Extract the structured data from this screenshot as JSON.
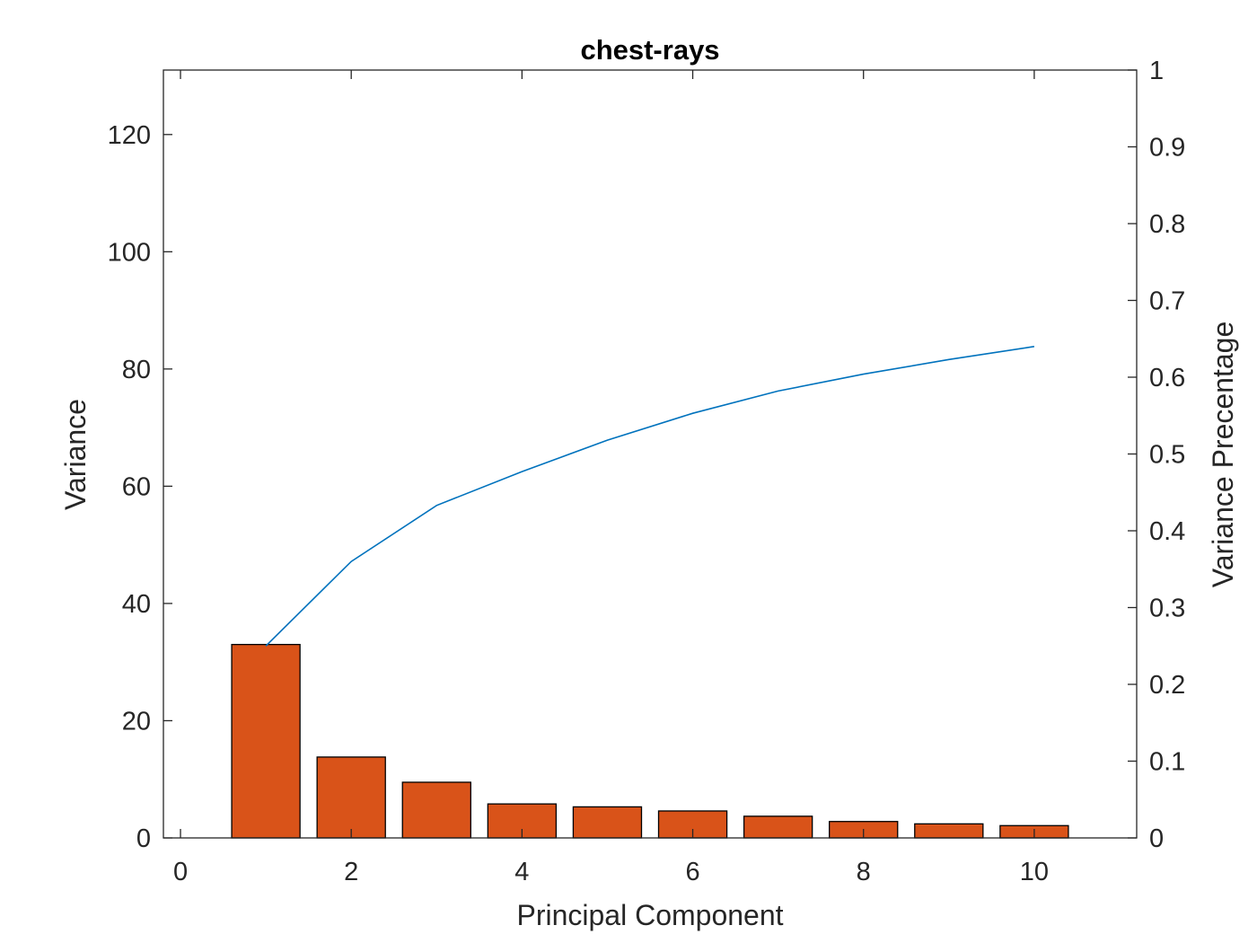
{
  "chart_data": {
    "type": "bar",
    "title": "chest-rays",
    "xlabel": "Principal Component",
    "ylabel": "Variance",
    "ylabel_right": "Variance Precentage",
    "xlim": [
      -0.2,
      11.2
    ],
    "ylim": [
      0,
      131
    ],
    "ylim_right": [
      0,
      1
    ],
    "xticks": [
      0,
      2,
      4,
      6,
      8,
      10
    ],
    "yticks": [
      0,
      20,
      40,
      60,
      80,
      100,
      120
    ],
    "yticks_right": [
      0,
      0.1,
      0.2,
      0.3,
      0.4,
      0.5,
      0.6,
      0.7,
      0.8,
      0.9,
      1
    ],
    "grid": false,
    "bar_color": "#D95319",
    "line_color": "#0072BD",
    "categories": [
      1,
      2,
      3,
      4,
      5,
      6,
      7,
      8,
      9,
      10
    ],
    "series": [
      {
        "type": "bar",
        "axis": "left",
        "values": [
          33.0,
          13.8,
          9.5,
          5.8,
          5.3,
          4.6,
          3.7,
          2.8,
          2.4,
          2.1
        ]
      },
      {
        "type": "line",
        "axis": "right",
        "values": [
          0.25,
          0.36,
          0.433,
          0.477,
          0.518,
          0.553,
          0.582,
          0.604,
          0.623,
          0.64
        ]
      }
    ]
  }
}
